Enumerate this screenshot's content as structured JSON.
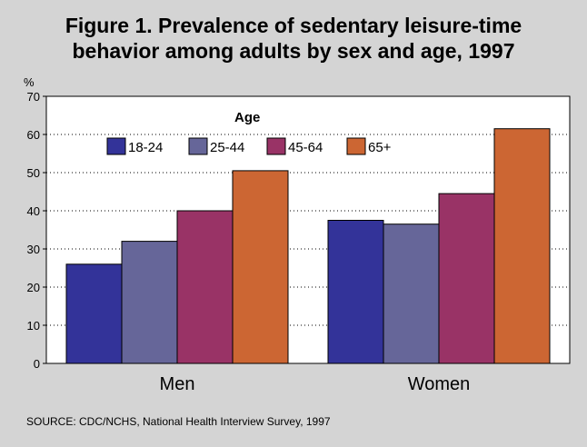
{
  "figure": {
    "title_line1": "Figure 1.  Prevalence of sedentary leisure-time",
    "title_line2": "behavior among adults by sex and age, 1997",
    "source": "SOURCE: CDC/NCHS, National Health Interview Survey, 1997"
  },
  "chart_data": {
    "type": "bar",
    "categories": [
      "Men",
      "Women"
    ],
    "series": [
      {
        "name": "18-24",
        "values": [
          26,
          37.5
        ],
        "color": "#333399"
      },
      {
        "name": "25-44",
        "values": [
          32,
          36.5
        ],
        "color": "#666699"
      },
      {
        "name": "45-64",
        "values": [
          40,
          44.5
        ],
        "color": "#993366"
      },
      {
        "name": "65+",
        "values": [
          50.5,
          61.5
        ],
        "color": "#cc6633"
      }
    ],
    "title": "",
    "xlabel": "",
    "ylabel": "%",
    "ylim": [
      0,
      70
    ],
    "yticks": [
      0,
      10,
      20,
      30,
      40,
      50,
      60,
      70
    ],
    "grid": true,
    "legend_title": "Age",
    "legend_position": "top-left"
  }
}
